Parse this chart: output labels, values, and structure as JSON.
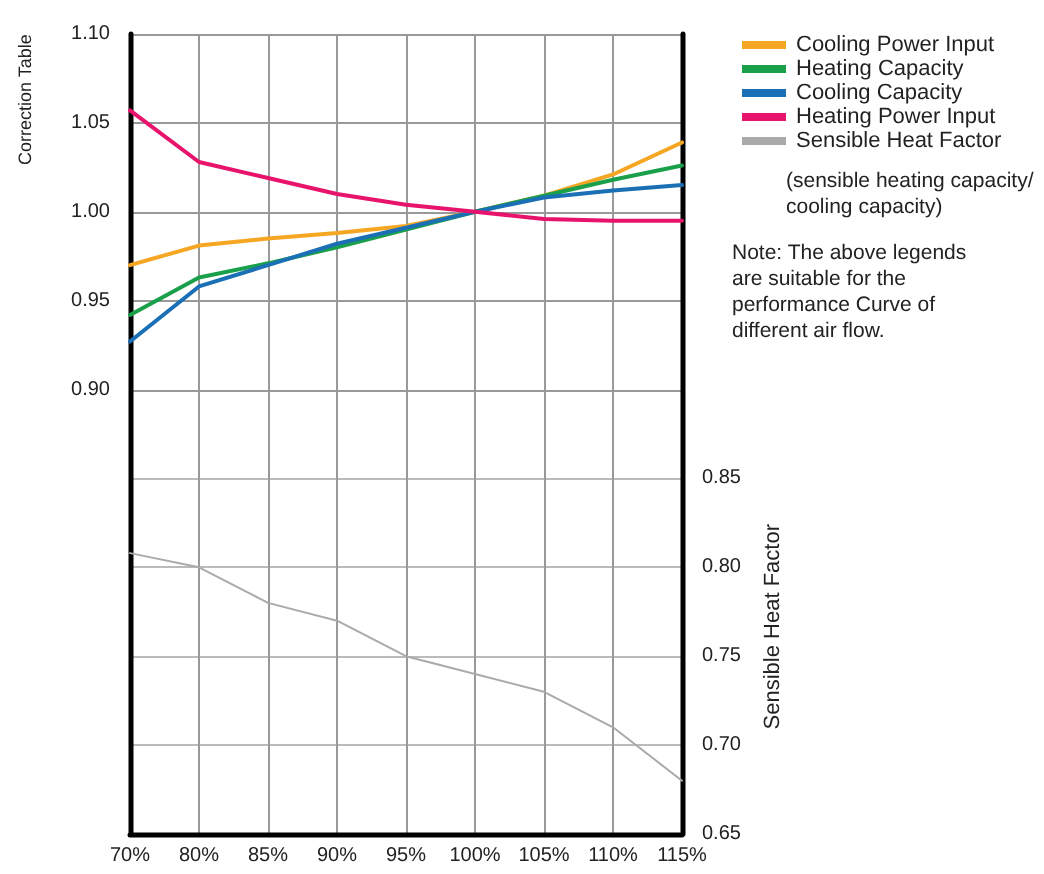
{
  "chart_data": {
    "type": "line",
    "ylabel": "Correction Table",
    "y2label": "Sensible Heat Factor",
    "categories": [
      "70%",
      "80%",
      "85%",
      "90%",
      "95%",
      "100%",
      "105%",
      "110%",
      "115%"
    ],
    "series": [
      {
        "name": "Cooling Power Input",
        "color": "#f5a623",
        "values": [
          0.97,
          0.981,
          0.985,
          0.988,
          0.992,
          1.0,
          1.009,
          1.021,
          1.039
        ]
      },
      {
        "name": "Heating Capacity",
        "color": "#1aa04b",
        "values": [
          0.942,
          0.963,
          0.971,
          0.98,
          0.99,
          1.0,
          1.009,
          1.018,
          1.026
        ]
      },
      {
        "name": "Cooling Capacity",
        "color": "#1a6fb5",
        "values": [
          0.927,
          0.958,
          0.97,
          0.982,
          0.991,
          1.0,
          1.008,
          1.012,
          1.015
        ]
      },
      {
        "name": "Heating Power Input",
        "color": "#e8146c",
        "values": [
          1.057,
          1.028,
          1.019,
          1.01,
          1.004,
          1.0,
          0.996,
          0.995,
          0.995
        ]
      },
      {
        "name": "Sensible Heat Factor",
        "color": "#aaaaaa",
        "axis": "y2",
        "values": [
          0.808,
          0.8,
          0.78,
          0.77,
          0.75,
          0.74,
          0.73,
          0.71,
          0.68
        ]
      }
    ],
    "ylim": [
      0.65,
      1.1
    ],
    "yticks": [
      {
        "value": 0.9,
        "label": "0.90"
      },
      {
        "value": 0.95,
        "label": "0.95"
      },
      {
        "value": 1.0,
        "label": "1.00"
      },
      {
        "value": 1.05,
        "label": "1.05"
      },
      {
        "value": 1.1,
        "label": "1.10"
      }
    ],
    "y2lim": [
      0.65,
      1.1
    ],
    "y2ticks": [
      {
        "value": 0.65,
        "label": "0.65"
      },
      {
        "value": 0.7,
        "label": "0.70"
      },
      {
        "value": 0.75,
        "label": "0.75"
      },
      {
        "value": 0.8,
        "label": "0.80"
      },
      {
        "value": 0.85,
        "label": "0.85"
      }
    ],
    "grid": true,
    "legend": "top right",
    "marker": "none",
    "line_style": "solid",
    "annotations": [
      "(sensible heating capacity/ cooling capacity)",
      "Note: The above legends are suitable for the performance Curve of different air flow."
    ]
  }
}
